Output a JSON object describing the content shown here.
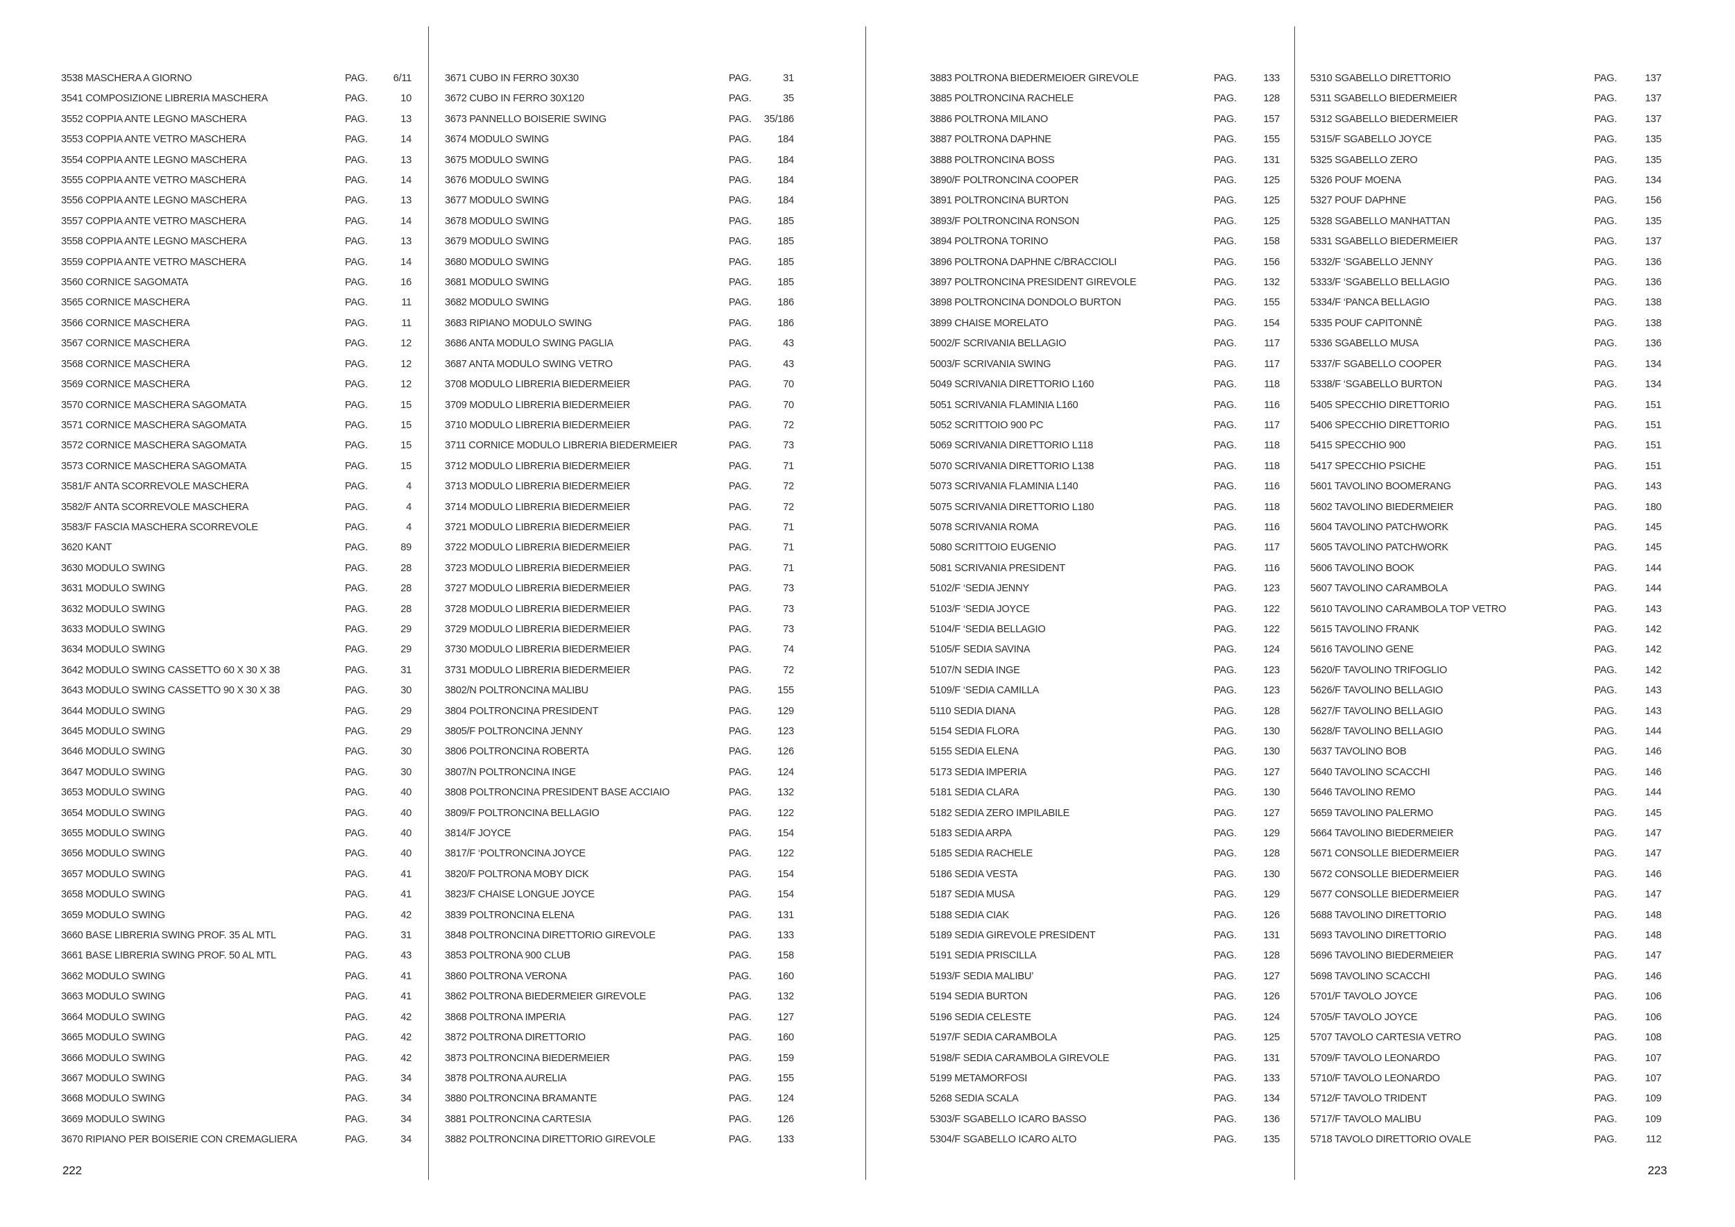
{
  "shared": {
    "pag_label": "PAG."
  },
  "footer": {
    "left_page_number": "222",
    "right_page_number": "223"
  },
  "columns": [
    {
      "entries": [
        {
          "label": "3538 MASCHERA A GIORNO",
          "page": "6/11"
        },
        {
          "label": "3541 COMPOSIZIONE LIBRERIA MASCHERA",
          "page": "10"
        },
        {
          "label": "3552 COPPIA ANTE LEGNO MASCHERA",
          "page": "13"
        },
        {
          "label": "3553 COPPIA ANTE VETRO MASCHERA",
          "page": "14"
        },
        {
          "label": "3554 COPPIA ANTE LEGNO MASCHERA",
          "page": "13"
        },
        {
          "label": "3555 COPPIA ANTE VETRO MASCHERA",
          "page": "14"
        },
        {
          "label": "3556 COPPIA ANTE LEGNO MASCHERA",
          "page": "13"
        },
        {
          "label": "3557 COPPIA ANTE VETRO MASCHERA",
          "page": "14"
        },
        {
          "label": "3558 COPPIA ANTE LEGNO MASCHERA",
          "page": "13"
        },
        {
          "label": "3559 COPPIA ANTE VETRO MASCHERA",
          "page": "14"
        },
        {
          "label": "3560 CORNICE SAGOMATA",
          "page": "16"
        },
        {
          "label": "3565 CORNICE MASCHERA",
          "page": "11"
        },
        {
          "label": "3566 CORNICE MASCHERA",
          "page": "11"
        },
        {
          "label": "3567 CORNICE MASCHERA",
          "page": "12"
        },
        {
          "label": "3568 CORNICE MASCHERA",
          "page": "12"
        },
        {
          "label": "3569 CORNICE MASCHERA",
          "page": "12"
        },
        {
          "label": "3570 CORNICE MASCHERA SAGOMATA",
          "page": "15"
        },
        {
          "label": "3571 CORNICE MASCHERA SAGOMATA",
          "page": "15"
        },
        {
          "label": "3572 CORNICE MASCHERA SAGOMATA",
          "page": "15"
        },
        {
          "label": "3573 CORNICE MASCHERA SAGOMATA",
          "page": "15"
        },
        {
          "label": "3581/F ANTA SCORREVOLE MASCHERA",
          "page": "4"
        },
        {
          "label": "3582/F ANTA SCORREVOLE MASCHERA",
          "page": "4"
        },
        {
          "label": "3583/F FASCIA MASCHERA SCORREVOLE",
          "page": "4"
        },
        {
          "label": "3620 KANT",
          "page": "89"
        },
        {
          "label": "3630 MODULO SWING",
          "page": "28"
        },
        {
          "label": "3631 MODULO SWING",
          "page": "28"
        },
        {
          "label": "3632 MODULO SWING",
          "page": "28"
        },
        {
          "label": "3633 MODULO SWING",
          "page": "29"
        },
        {
          "label": "3634 MODULO SWING",
          "page": "29"
        },
        {
          "label": "3642 MODULO SWING CASSETTO 60 X 30 X 38",
          "page": "31"
        },
        {
          "label": "3643 MODULO SWING CASSETTO 90 X 30 X 38",
          "page": "30"
        },
        {
          "label": "3644 MODULO SWING",
          "page": "29"
        },
        {
          "label": "3645 MODULO SWING",
          "page": "29"
        },
        {
          "label": "3646 MODULO SWING",
          "page": "30"
        },
        {
          "label": "3647 MODULO SWING",
          "page": "30"
        },
        {
          "label": "3653 MODULO SWING",
          "page": "40"
        },
        {
          "label": "3654 MODULO SWING",
          "page": "40"
        },
        {
          "label": "3655 MODULO SWING",
          "page": "40"
        },
        {
          "label": "3656 MODULO SWING",
          "page": "40"
        },
        {
          "label": "3657 MODULO SWING",
          "page": "41"
        },
        {
          "label": "3658 MODULO SWING",
          "page": "41"
        },
        {
          "label": "3659 MODULO SWING",
          "page": "42"
        },
        {
          "label": "3660 BASE LIBRERIA SWING PROF. 35 AL MTL",
          "page": "31"
        },
        {
          "label": "3661 BASE LIBRERIA SWING PROF. 50 AL MTL",
          "page": "43"
        },
        {
          "label": "3662 MODULO SWING",
          "page": "41"
        },
        {
          "label": "3663 MODULO SWING",
          "page": "41"
        },
        {
          "label": "3664 MODULO SWING",
          "page": "42"
        },
        {
          "label": "3665 MODULO SWING",
          "page": "42"
        },
        {
          "label": "3666 MODULO SWING",
          "page": "42"
        },
        {
          "label": "3667 MODULO SWING",
          "page": "34"
        },
        {
          "label": "3668 MODULO SWING",
          "page": "34"
        },
        {
          "label": "3669 MODULO SWING",
          "page": "34"
        },
        {
          "label": "3670 RIPIANO PER BOISERIE CON CREMAGLIERA",
          "page": "34"
        }
      ]
    },
    {
      "entries": [
        {
          "label": "3671 CUBO IN FERRO 30X30",
          "page": "31"
        },
        {
          "label": "3672 CUBO IN FERRO 30X120",
          "page": "35"
        },
        {
          "label": "3673 PANNELLO BOISERIE SWING",
          "page": "35/186"
        },
        {
          "label": "3674 MODULO SWING",
          "page": "184"
        },
        {
          "label": "3675 MODULO SWING",
          "page": "184"
        },
        {
          "label": "3676 MODULO SWING",
          "page": "184"
        },
        {
          "label": "3677 MODULO SWING",
          "page": "184"
        },
        {
          "label": "3678 MODULO SWING",
          "page": "185"
        },
        {
          "label": "3679 MODULO SWING",
          "page": "185"
        },
        {
          "label": "3680 MODULO SWING",
          "page": "185"
        },
        {
          "label": "3681 MODULO SWING",
          "page": "185"
        },
        {
          "label": "3682 MODULO SWING",
          "page": "186"
        },
        {
          "label": "3683 RIPIANO MODULO SWING",
          "page": "186"
        },
        {
          "label": "3686 ANTA MODULO SWING PAGLIA",
          "page": "43"
        },
        {
          "label": "3687 ANTA MODULO SWING VETRO",
          "page": "43"
        },
        {
          "label": "3708 MODULO LIBRERIA BIEDERMEIER",
          "page": "70"
        },
        {
          "label": "3709 MODULO LIBRERIA BIEDERMEIER",
          "page": "70"
        },
        {
          "label": "3710 MODULO LIBRERIA BIEDERMEIER",
          "page": "72"
        },
        {
          "label": "3711 CORNICE MODULO LIBRERIA BIEDERMEIER",
          "page": "73"
        },
        {
          "label": "3712 MODULO LIBRERIA BIEDERMEIER",
          "page": "71"
        },
        {
          "label": "3713 MODULO LIBRERIA BIEDERMEIER",
          "page": "72"
        },
        {
          "label": "3714 MODULO LIBRERIA BIEDERMEIER",
          "page": "72"
        },
        {
          "label": "3721 MODULO LIBRERIA BIEDERMEIER",
          "page": "71"
        },
        {
          "label": "3722 MODULO LIBRERIA BIEDERMEIER",
          "page": "71"
        },
        {
          "label": "3723 MODULO LIBRERIA BIEDERMEIER",
          "page": "71"
        },
        {
          "label": "3727 MODULO LIBRERIA BIEDERMEIER",
          "page": "73"
        },
        {
          "label": "3728 MODULO LIBRERIA BIEDERMEIER",
          "page": "73"
        },
        {
          "label": "3729 MODULO LIBRERIA BIEDERMEIER",
          "page": "73"
        },
        {
          "label": "3730 MODULO LIBRERIA BIEDERMEIER",
          "page": "74"
        },
        {
          "label": "3731 MODULO LIBRERIA BIEDERMEIER",
          "page": "72"
        },
        {
          "label": "3802/N POLTRONCINA MALIBU",
          "page": "155"
        },
        {
          "label": "3804 POLTRONCINA PRESIDENT",
          "page": "129"
        },
        {
          "label": "3805/F POLTRONCINA JENNY",
          "page": "123"
        },
        {
          "label": "3806 POLTRONCINA ROBERTA",
          "page": "126"
        },
        {
          "label": "3807/N POLTRONCINA INGE",
          "page": "124"
        },
        {
          "label": "3808 POLTRONCINA PRESIDENT BASE ACCIAIO",
          "page": "132"
        },
        {
          "label": "3809/F POLTRONCINA BELLAGIO",
          "page": "122"
        },
        {
          "label": "3814/F JOYCE",
          "page": "154"
        },
        {
          "label": "3817/F ‘POLTRONCINA JOYCE",
          "page": "122"
        },
        {
          "label": "3820/F POLTRONA MOBY DICK",
          "page": "154"
        },
        {
          "label": "3823/F CHAISE LONGUE JOYCE",
          "page": "154"
        },
        {
          "label": "3839 POLTRONCINA ELENA",
          "page": "131"
        },
        {
          "label": "3848 POLTRONCINA DIRETTORIO GIREVOLE",
          "page": "133"
        },
        {
          "label": "3853 POLTRONA 900 CLUB",
          "page": "158"
        },
        {
          "label": "3860 POLTRONA VERONA",
          "page": "160"
        },
        {
          "label": "3862 POLTRONA BIEDERMEIER GIREVOLE",
          "page": "132"
        },
        {
          "label": "3868 POLTRONA IMPERIA",
          "page": "127"
        },
        {
          "label": "3872 POLTRONA DIRETTORIO",
          "page": "160"
        },
        {
          "label": "3873 POLTRONCINA BIEDERMEIER",
          "page": "159"
        },
        {
          "label": "3878 POLTRONA AURELIA",
          "page": "155"
        },
        {
          "label": "3880 POLTRONCINA BRAMANTE",
          "page": "124"
        },
        {
          "label": "3881 POLTRONCINA CARTESIA",
          "page": "126"
        },
        {
          "label": "3882 POLTRONCINA DIRETTORIO GIREVOLE",
          "page": "133"
        }
      ]
    },
    {
      "entries": [
        {
          "label": "3883 POLTRONA BIEDERMEIOER GIREVOLE",
          "page": "133"
        },
        {
          "label": "3885 POLTRONCINA RACHELE",
          "page": "128"
        },
        {
          "label": "3886 POLTRONA MILANO",
          "page": "157"
        },
        {
          "label": "3887 POLTRONA DAPHNE",
          "page": "155"
        },
        {
          "label": "3888 POLTRONCINA BOSS",
          "page": "131"
        },
        {
          "label": "3890/F POLTRONCINA COOPER",
          "page": "125"
        },
        {
          "label": "3891 POLTRONCINA BURTON",
          "page": "125"
        },
        {
          "label": "3893/F POLTRONCINA RONSON",
          "page": "125"
        },
        {
          "label": "3894 POLTRONA TORINO",
          "page": "158"
        },
        {
          "label": "3896 POLTRONA DAPHNE C/BRACCIOLI",
          "page": "156"
        },
        {
          "label": "3897 POLTRONCINA PRESIDENT GIREVOLE",
          "page": "132"
        },
        {
          "label": "3898 POLTRONCINA DONDOLO BURTON",
          "page": "155"
        },
        {
          "label": "3899 CHAISE MORELATO",
          "page": "154"
        },
        {
          "label": "5002/F SCRIVANIA BELLAGIO",
          "page": "117"
        },
        {
          "label": "5003/F SCRIVANIA SWING",
          "page": "117"
        },
        {
          "label": "5049 SCRIVANIA DIRETTORIO L160",
          "page": "118"
        },
        {
          "label": "5051 SCRIVANIA FLAMINIA L160",
          "page": "116"
        },
        {
          "label": "5052 SCRITTOIO 900 PC",
          "page": "117"
        },
        {
          "label": "5069 SCRIVANIA DIRETTORIO L118",
          "page": "118"
        },
        {
          "label": "5070 SCRIVANIA DIRETTORIO L138",
          "page": "118"
        },
        {
          "label": "5073 SCRIVANIA FLAMINIA L140",
          "page": "116"
        },
        {
          "label": "5075 SCRIVANIA DIRETTORIO L180",
          "page": "118"
        },
        {
          "label": "5078 SCRIVANIA ROMA",
          "page": "116"
        },
        {
          "label": "5080 SCRITTOIO EUGENIO",
          "page": "117"
        },
        {
          "label": "5081 SCRIVANIA PRESIDENT",
          "page": "116"
        },
        {
          "label": "5102/F ‘SEDIA JENNY",
          "page": "123"
        },
        {
          "label": "5103/F ‘SEDIA JOYCE",
          "page": "122"
        },
        {
          "label": "5104/F ‘SEDIA BELLAGIO",
          "page": "122"
        },
        {
          "label": "5105/F SEDIA SAVINA",
          "page": "124"
        },
        {
          "label": "5107/N SEDIA INGE",
          "page": "123"
        },
        {
          "label": "5109/F ‘SEDIA CAMILLA",
          "page": "123"
        },
        {
          "label": "5110 SEDIA DIANA",
          "page": "128"
        },
        {
          "label": "5154 SEDIA FLORA",
          "page": "130"
        },
        {
          "label": "5155 SEDIA ELENA",
          "page": "130"
        },
        {
          "label": "5173 SEDIA IMPERIA",
          "page": "127"
        },
        {
          "label": "5181 SEDIA CLARA",
          "page": "130"
        },
        {
          "label": "5182 SEDIA ZERO IMPILABILE",
          "page": "127"
        },
        {
          "label": "5183 SEDIA ARPA",
          "page": "129"
        },
        {
          "label": "5185 SEDIA RACHELE",
          "page": "128"
        },
        {
          "label": "5186 SEDIA VESTA",
          "page": "130"
        },
        {
          "label": "5187 SEDIA MUSA",
          "page": "129"
        },
        {
          "label": "5188 SEDIA CIAK",
          "page": "126"
        },
        {
          "label": "5189 SEDIA GIREVOLE PRESIDENT",
          "page": "131"
        },
        {
          "label": "5191 SEDIA PRISCILLA",
          "page": "128"
        },
        {
          "label": "5193/F SEDIA MALIBU’",
          "page": "127"
        },
        {
          "label": "5194 SEDIA BURTON",
          "page": "126"
        },
        {
          "label": "5196 SEDIA CELESTE",
          "page": "124"
        },
        {
          "label": "5197/F SEDIA CARAMBOLA",
          "page": "125"
        },
        {
          "label": "5198/F SEDIA CARAMBOLA GIREVOLE",
          "page": "131"
        },
        {
          "label": "5199 METAMORFOSI",
          "page": "133"
        },
        {
          "label": "5268 SEDIA SCALA",
          "page": "134"
        },
        {
          "label": "5303/F SGABELLO ICARO BASSO",
          "page": "136"
        },
        {
          "label": "5304/F SGABELLO ICARO ALTO",
          "page": "135"
        }
      ]
    },
    {
      "entries": [
        {
          "label": "5310 SGABELLO DIRETTORIO",
          "page": "137"
        },
        {
          "label": "5311 SGABELLO BIEDERMEIER",
          "page": "137"
        },
        {
          "label": "5312 SGABELLO BIEDERMEIER",
          "page": "137"
        },
        {
          "label": "5315/F SGABELLO JOYCE",
          "page": "135"
        },
        {
          "label": "5325 SGABELLO ZERO",
          "page": "135"
        },
        {
          "label": "5326 POUF MOENA",
          "page": "134"
        },
        {
          "label": "5327 POUF DAPHNE",
          "page": "156"
        },
        {
          "label": "5328 SGABELLO MANHATTAN",
          "page": "135"
        },
        {
          "label": "5331 SGABELLO BIEDERMEIER",
          "page": "137"
        },
        {
          "label": "5332/F ‘SGABELLO JENNY",
          "page": "136"
        },
        {
          "label": "5333/F ‘SGABELLO BELLAGIO",
          "page": "136"
        },
        {
          "label": "5334/F ‘PANCA BELLAGIO",
          "page": "138"
        },
        {
          "label": "5335 POUF CAPITONNÈ",
          "page": "138"
        },
        {
          "label": "5336 SGABELLO MUSA",
          "page": "136"
        },
        {
          "label": "5337/F SGABELLO COOPER",
          "page": "134"
        },
        {
          "label": "5338/F ‘SGABELLO BURTON",
          "page": "134"
        },
        {
          "label": "5405 SPECCHIO DIRETTORIO",
          "page": "151"
        },
        {
          "label": "5406 SPECCHIO DIRETTORIO",
          "page": "151"
        },
        {
          "label": "5415 SPECCHIO 900",
          "page": "151"
        },
        {
          "label": "5417 SPECCHIO PSICHE",
          "page": "151"
        },
        {
          "label": "5601 TAVOLINO BOOMERANG",
          "page": "143"
        },
        {
          "label": "5602 TAVOLINO BIEDERMEIER",
          "page": "180"
        },
        {
          "label": "5604 TAVOLINO PATCHWORK",
          "page": "145"
        },
        {
          "label": "5605 TAVOLINO PATCHWORK",
          "page": "145"
        },
        {
          "label": "5606 TAVOLINO BOOK",
          "page": "144"
        },
        {
          "label": "5607 TAVOLINO CARAMBOLA",
          "page": "144"
        },
        {
          "label": "5610 TAVOLINO CARAMBOLA TOP VETRO",
          "page": "143"
        },
        {
          "label": "5615 TAVOLINO FRANK",
          "page": "142"
        },
        {
          "label": "5616 TAVOLINO GENE",
          "page": "142"
        },
        {
          "label": "5620/F TAVOLINO TRIFOGLIO",
          "page": "142"
        },
        {
          "label": "5626/F TAVOLINO BELLAGIO",
          "page": "143"
        },
        {
          "label": "5627/F TAVOLINO BELLAGIO",
          "page": "143"
        },
        {
          "label": "5628/F TAVOLINO BELLAGIO",
          "page": "144"
        },
        {
          "label": "5637 TAVOLINO BOB",
          "page": "146"
        },
        {
          "label": "5640 TAVOLINO SCACCHI",
          "page": "146"
        },
        {
          "label": "5646 TAVOLINO REMO",
          "page": "144"
        },
        {
          "label": "5659 TAVOLINO PALERMO",
          "page": "145"
        },
        {
          "label": "5664 TAVOLINO BIEDERMEIER",
          "page": "147"
        },
        {
          "label": "5671 CONSOLLE BIEDERMEIER",
          "page": "147"
        },
        {
          "label": "5672 CONSOLLE BIEDERMEIER",
          "page": "146"
        },
        {
          "label": "5677 CONSOLLE BIEDERMEIER",
          "page": "147"
        },
        {
          "label": "5688 TAVOLINO DIRETTORIO",
          "page": "148"
        },
        {
          "label": "5693 TAVOLINO DIRETTORIO",
          "page": "148"
        },
        {
          "label": "5696 TAVOLINO BIEDERMEIER",
          "page": "147"
        },
        {
          "label": "5698 TAVOLINO SCACCHI",
          "page": "146"
        },
        {
          "label": "5701/F TAVOLO JOYCE",
          "page": "106"
        },
        {
          "label": "5705/F TAVOLO JOYCE",
          "page": "106"
        },
        {
          "label": "5707 TAVOLO CARTESIA VETRO",
          "page": "108"
        },
        {
          "label": "5709/F TAVOLO LEONARDO",
          "page": "107"
        },
        {
          "label": "5710/F TAVOLO LEONARDO",
          "page": "107"
        },
        {
          "label": "5712/F TAVOLO TRIDENT",
          "page": "109"
        },
        {
          "label": "5717/F TAVOLO MALIBU",
          "page": "109"
        },
        {
          "label": "5718 TAVOLO DIRETTORIO OVALE",
          "page": "112"
        }
      ]
    }
  ]
}
